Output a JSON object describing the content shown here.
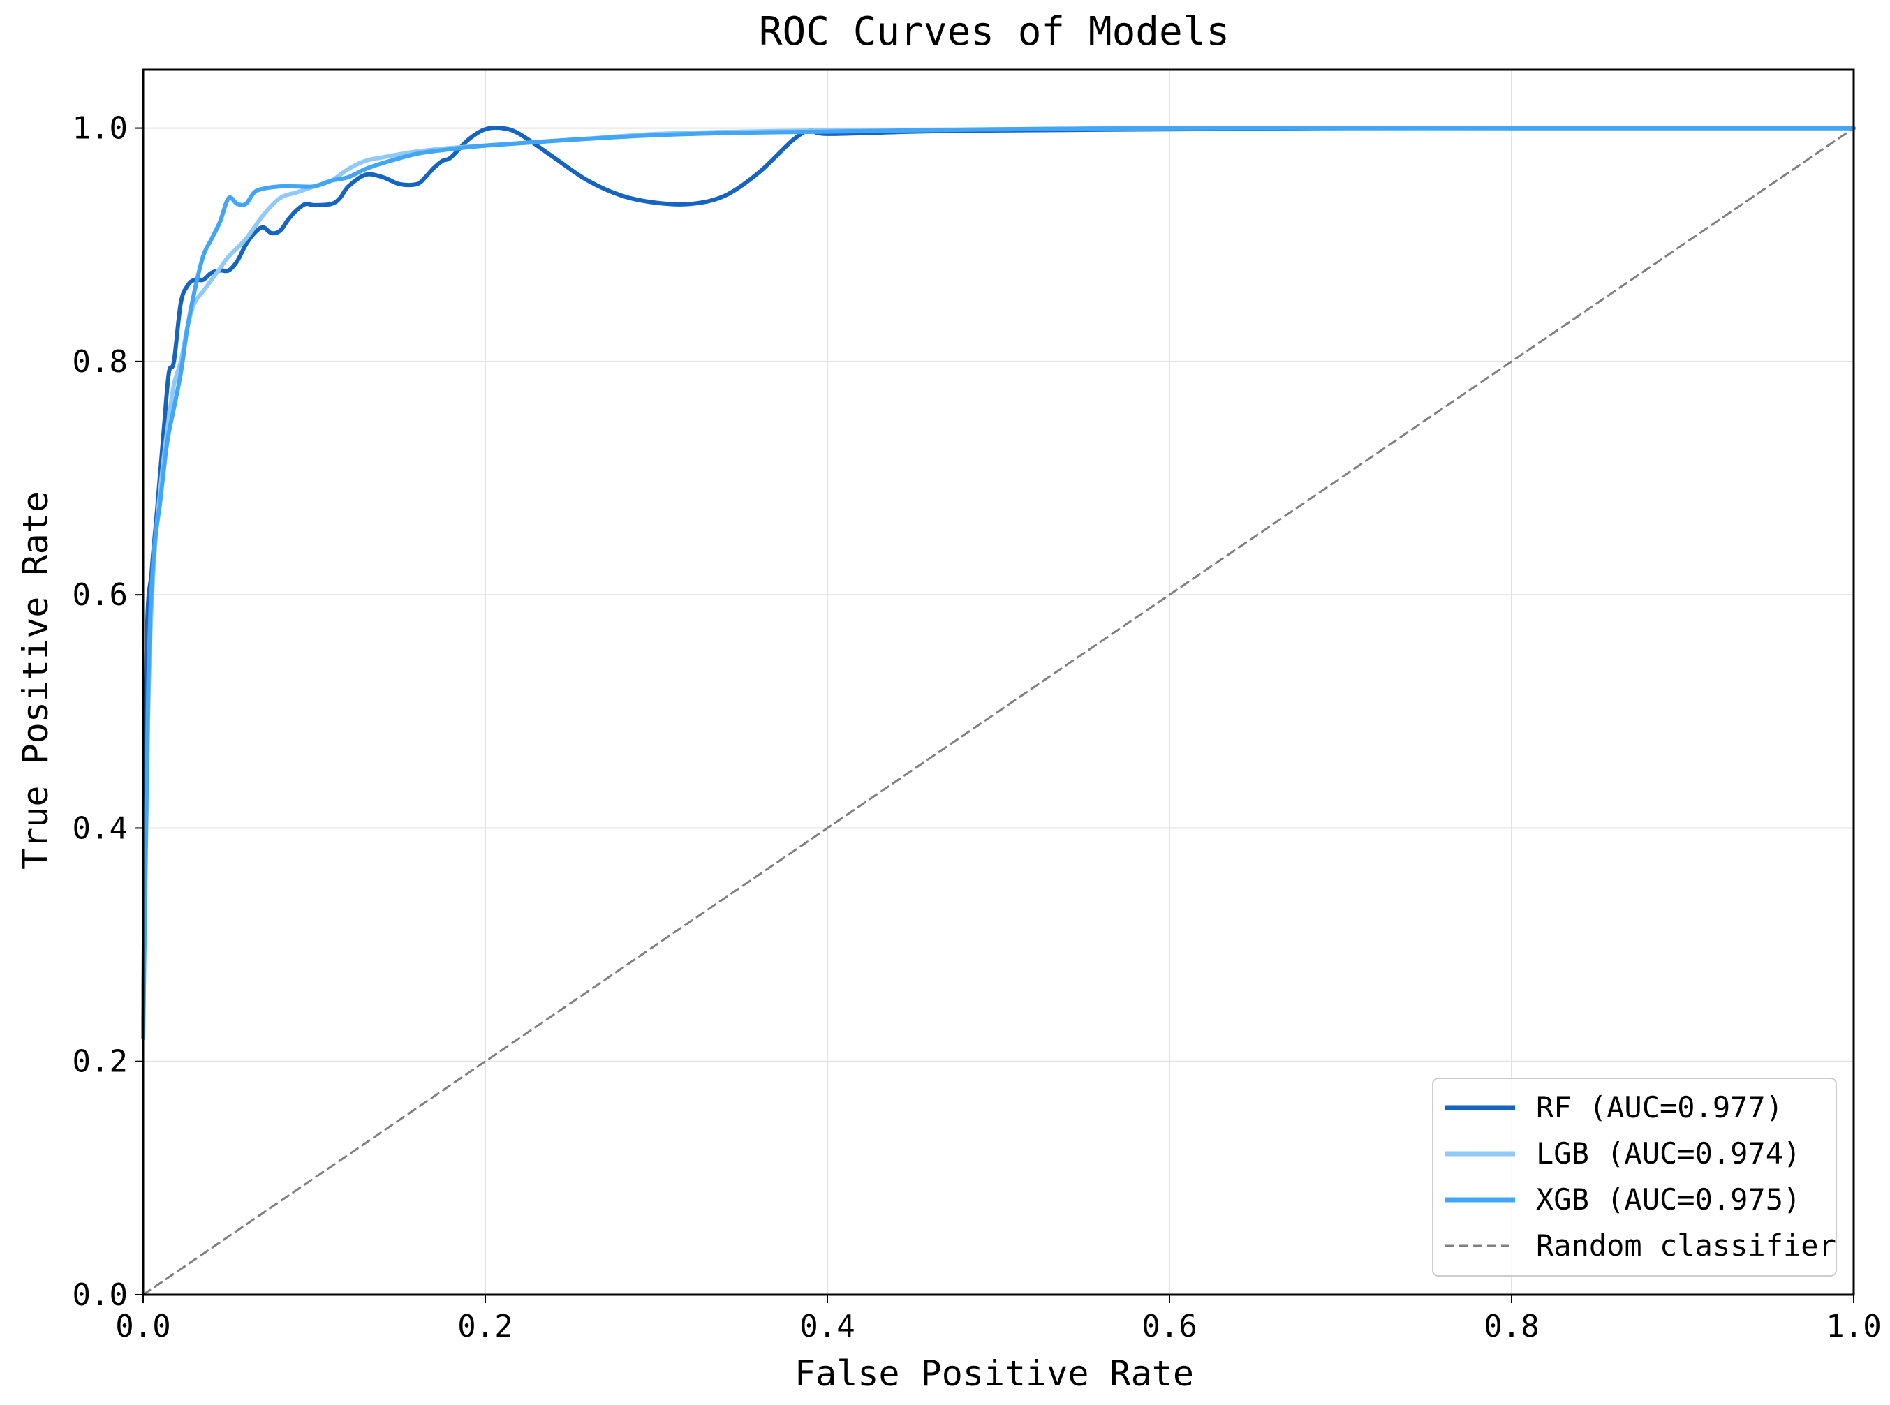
{
  "chart_data": {
    "type": "line",
    "title": "ROC Curves of Models",
    "xlabel": "False Positive Rate",
    "ylabel": "True Positive Rate",
    "xlim": [
      0.0,
      1.0
    ],
    "ylim": [
      0.0,
      1.05
    ],
    "xticks": [
      "0.0",
      "0.2",
      "0.4",
      "0.6",
      "0.8",
      "1.0"
    ],
    "yticks": [
      "0.0",
      "0.2",
      "0.4",
      "0.6",
      "0.8",
      "1.0"
    ],
    "grid": true,
    "legend_position": "bottom-right",
    "series": [
      {
        "name": "RF (AUC=0.977)",
        "color": "#1565c0",
        "style": "solid",
        "x": [
          0.0,
          0.002,
          0.005,
          0.008,
          0.012,
          0.015,
          0.018,
          0.022,
          0.026,
          0.03,
          0.035,
          0.04,
          0.045,
          0.05,
          0.055,
          0.06,
          0.065,
          0.07,
          0.075,
          0.08,
          0.085,
          0.09,
          0.095,
          0.1,
          0.11,
          0.115,
          0.12,
          0.13,
          0.14,
          0.15,
          0.16,
          0.165,
          0.17,
          0.175,
          0.18,
          0.19,
          0.2,
          0.21,
          0.22,
          0.24,
          0.26,
          0.28,
          0.3,
          0.32,
          0.34,
          0.36,
          0.38,
          0.39,
          0.4,
          0.45,
          0.5,
          0.6,
          0.7,
          0.8,
          0.9,
          1.0
        ],
        "y": [
          0.22,
          0.55,
          0.62,
          0.67,
          0.74,
          0.79,
          0.8,
          0.85,
          0.865,
          0.87,
          0.87,
          0.876,
          0.878,
          0.878,
          0.886,
          0.9,
          0.91,
          0.915,
          0.91,
          0.912,
          0.922,
          0.93,
          0.935,
          0.934,
          0.935,
          0.94,
          0.95,
          0.96,
          0.958,
          0.952,
          0.952,
          0.958,
          0.966,
          0.972,
          0.975,
          0.99,
          0.999,
          1.0,
          0.995,
          0.975,
          0.955,
          0.942,
          0.936,
          0.935,
          0.942,
          0.962,
          0.99,
          0.998,
          0.995,
          0.997,
          0.998,
          0.999,
          1.0,
          1.0,
          1.0,
          1.0
        ]
      },
      {
        "name": "LGB (AUC=0.974)",
        "color": "#90caf9",
        "style": "solid",
        "x": [
          0.0,
          0.003,
          0.006,
          0.01,
          0.014,
          0.018,
          0.022,
          0.026,
          0.03,
          0.035,
          0.04,
          0.045,
          0.05,
          0.06,
          0.07,
          0.08,
          0.09,
          0.1,
          0.11,
          0.12,
          0.13,
          0.14,
          0.16,
          0.18,
          0.2,
          0.25,
          0.3,
          0.35,
          0.4,
          0.5,
          0.6,
          0.7,
          0.8,
          0.9,
          1.0
        ],
        "y": [
          0.22,
          0.5,
          0.62,
          0.69,
          0.74,
          0.78,
          0.8,
          0.83,
          0.85,
          0.86,
          0.87,
          0.88,
          0.89,
          0.905,
          0.925,
          0.94,
          0.945,
          0.95,
          0.955,
          0.965,
          0.972,
          0.975,
          0.98,
          0.983,
          0.985,
          0.99,
          0.995,
          0.997,
          0.998,
          0.999,
          1.0,
          1.0,
          1.0,
          1.0,
          1.0
        ]
      },
      {
        "name": "XGB (AUC=0.975)",
        "color": "#42a5f5",
        "style": "solid",
        "x": [
          0.0,
          0.003,
          0.006,
          0.01,
          0.014,
          0.018,
          0.022,
          0.026,
          0.03,
          0.035,
          0.04,
          0.045,
          0.05,
          0.055,
          0.06,
          0.065,
          0.07,
          0.08,
          0.09,
          0.1,
          0.11,
          0.12,
          0.13,
          0.14,
          0.16,
          0.18,
          0.2,
          0.25,
          0.3,
          0.35,
          0.4,
          0.5,
          0.6,
          0.7,
          0.8,
          0.9,
          1.0
        ],
        "y": [
          0.22,
          0.52,
          0.63,
          0.68,
          0.73,
          0.76,
          0.79,
          0.83,
          0.86,
          0.89,
          0.905,
          0.92,
          0.94,
          0.935,
          0.935,
          0.945,
          0.948,
          0.95,
          0.95,
          0.95,
          0.955,
          0.958,
          0.965,
          0.97,
          0.978,
          0.982,
          0.985,
          0.99,
          0.994,
          0.996,
          0.997,
          0.999,
          1.0,
          1.0,
          1.0,
          1.0,
          1.0
        ]
      },
      {
        "name": "Random classifier",
        "color": "#808080",
        "style": "dashed",
        "x": [
          0.0,
          1.0
        ],
        "y": [
          0.0,
          1.0
        ]
      }
    ]
  }
}
